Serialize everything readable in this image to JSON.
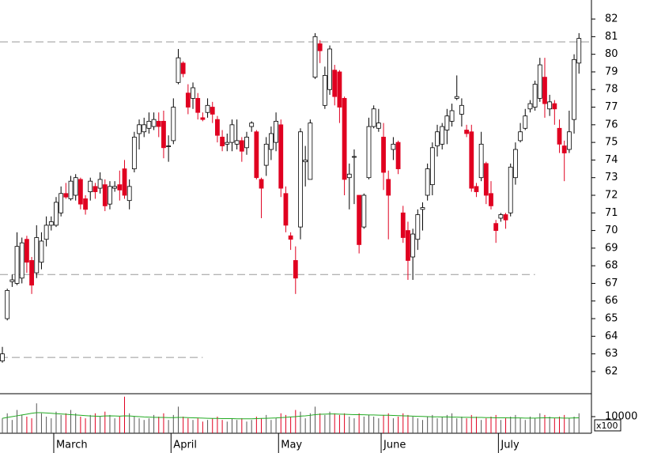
{
  "chart_data": {
    "type": "candlestick",
    "categories": [
      null,
      null,
      null,
      null,
      null,
      null,
      null,
      null,
      null,
      null,
      null,
      "March",
      null,
      null,
      null,
      null,
      null,
      null,
      null,
      null,
      null,
      null,
      null,
      null,
      null,
      null,
      null,
      null,
      null,
      null,
      null,
      null,
      null,
      null,
      null,
      "April",
      null,
      null,
      null,
      null,
      null,
      null,
      null,
      null,
      null,
      null,
      null,
      null,
      null,
      null,
      null,
      null,
      null,
      null,
      null,
      null,
      null,
      "May",
      null,
      null,
      null,
      null,
      null,
      null,
      null,
      null,
      null,
      null,
      null,
      null,
      null,
      null,
      null,
      null,
      null,
      null,
      null,
      null,
      "June",
      null,
      null,
      null,
      null,
      null,
      null,
      null,
      null,
      null,
      null,
      null,
      null,
      null,
      null,
      null,
      null,
      null,
      null,
      null,
      null,
      null,
      null,
      null,
      "July",
      null,
      null,
      null,
      null,
      null,
      null,
      null,
      null,
      null,
      null,
      null,
      null,
      null,
      null,
      null,
      null
    ],
    "open": [
      62.6,
      65.0,
      67.1,
      67.0,
      67.3,
      69.5,
      68.3,
      67.6,
      68.2,
      69.5,
      70.3,
      70.3,
      71.0,
      72.1,
      71.8,
      72.0,
      72.9,
      71.8,
      72.2,
      72.5,
      72.4,
      72.6,
      71.5,
      72.4,
      72.6,
      73.5,
      71.7,
      73.5,
      75.5,
      75.6,
      75.8,
      75.9,
      76.2,
      76.2,
      74.8,
      75.1,
      78.4,
      79.5,
      77.8,
      77.5,
      77.5,
      76.4,
      76.7,
      77.0,
      76.3,
      75.3,
      74.9,
      75.0,
      74.9,
      75.1,
      74.7,
      75.9,
      75.6,
      72.9,
      73.7,
      74.6,
      75.0,
      76.0,
      72.1,
      69.7,
      68.3,
      70.2,
      73.9,
      72.9,
      78.7,
      80.6,
      77.1,
      78.0,
      79.1,
      79.0,
      77.5,
      73.0,
      74.2,
      72.0,
      70.2,
      73.0,
      75.9,
      75.8,
      75.3,
      72.9,
      74.6,
      75.0,
      71.0,
      70.0,
      68.5,
      69.5,
      71.2,
      72.0,
      72.6,
      74.8,
      74.9,
      75.7,
      76.2,
      77.5,
      76.6,
      75.7,
      75.6,
      72.5,
      73.0,
      73.8,
      72.1,
      70.4,
      70.7,
      70.9,
      71.0,
      73.0,
      75.1,
      75.8,
      76.9,
      77.0,
      77.5,
      78.7,
      76.9,
      77.2,
      75.8,
      74.8,
      74.6,
      76.3,
      79.5
    ],
    "high": [
      63.4,
      66.7,
      67.5,
      69.9,
      69.6,
      69.7,
      68.5,
      70.3,
      69.9,
      70.8,
      70.8,
      71.9,
      72.5,
      72.7,
      73.1,
      73.2,
      73.0,
      72.0,
      73.0,
      72.7,
      73.3,
      72.9,
      72.8,
      72.8,
      73.4,
      74.0,
      72.9,
      75.6,
      76.3,
      76.4,
      76.7,
      76.7,
      76.7,
      76.8,
      75.4,
      77.5,
      80.3,
      79.6,
      78.3,
      78.4,
      77.8,
      76.7,
      77.5,
      77.3,
      76.5,
      75.7,
      75.5,
      76.3,
      76.3,
      75.3,
      75.6,
      76.2,
      75.7,
      73.0,
      75.3,
      75.9,
      76.7,
      76.3,
      72.5,
      69.9,
      69.1,
      75.8,
      74.8,
      76.3,
      81.2,
      80.8,
      79.3,
      80.5,
      79.4,
      79.1,
      77.6,
      73.8,
      74.6,
      72.0,
      72.1,
      76.4,
      77.1,
      76.9,
      76.1,
      73.4,
      75.3,
      75.1,
      71.4,
      70.5,
      70.1,
      71.2,
      71.6,
      73.8,
      75.0,
      76.0,
      76.1,
      76.9,
      77.2,
      78.8,
      77.5,
      76.0,
      76.0,
      72.7,
      75.6,
      73.9,
      72.8,
      70.6,
      71.0,
      71.0,
      73.8,
      75.0,
      76.1,
      76.9,
      77.4,
      78.5,
      79.8,
      79.8,
      77.7,
      77.4,
      76.3,
      75.1,
      76.8,
      80.0,
      81.2
    ],
    "low": [
      62.5,
      64.9,
      66.8,
      66.9,
      67.0,
      67.6,
      66.4,
      67.3,
      67.8,
      69.1,
      70.0,
      70.2,
      70.8,
      71.8,
      71.7,
      71.7,
      71.2,
      70.9,
      71.7,
      71.8,
      72.1,
      71.1,
      71.2,
      72.2,
      71.7,
      71.8,
      71.2,
      73.3,
      74.6,
      75.3,
      75.5,
      75.7,
      75.3,
      74.1,
      73.9,
      74.9,
      78.3,
      78.7,
      76.6,
      76.9,
      76.3,
      76.2,
      76.4,
      76.1,
      75.0,
      74.5,
      74.5,
      74.5,
      74.6,
      73.9,
      74.3,
      75.6,
      72.9,
      70.7,
      73.1,
      74.0,
      74.5,
      71.9,
      69.9,
      68.9,
      66.4,
      69.5,
      72.5,
      72.9,
      78.6,
      79.5,
      76.9,
      77.7,
      77.1,
      76.1,
      72.0,
      71.2,
      71.5,
      68.7,
      70.1,
      72.9,
      75.8,
      75.6,
      72.3,
      69.5,
      74.0,
      73.2,
      69.3,
      67.2,
      67.2,
      68.9,
      70.0,
      71.7,
      72.0,
      74.2,
      74.6,
      74.9,
      75.9,
      77.4,
      75.9,
      75.3,
      72.2,
      71.9,
      72.8,
      71.5,
      71.2,
      69.3,
      70.5,
      70.1,
      70.8,
      72.6,
      75.0,
      75.7,
      76.7,
      76.8,
      77.3,
      76.4,
      76.5,
      76.0,
      74.4,
      72.8,
      74.4,
      75.5,
      78.9
    ],
    "close": [
      63.0,
      66.6,
      67.2,
      69.1,
      69.3,
      68.2,
      66.9,
      69.6,
      69.4,
      70.3,
      70.5,
      71.6,
      72.1,
      71.9,
      72.8,
      73.0,
      71.5,
      71.2,
      72.8,
      72.2,
      72.9,
      71.4,
      72.5,
      72.5,
      72.3,
      72.0,
      72.5,
      75.3,
      76.0,
      76.0,
      76.2,
      76.3,
      75.9,
      74.7,
      74.8,
      77.0,
      79.8,
      78.9,
      77.0,
      78.1,
      76.7,
      76.3,
      77.1,
      76.6,
      75.4,
      74.8,
      75.0,
      76.0,
      75.1,
      74.5,
      75.3,
      76.1,
      73.0,
      72.4,
      74.9,
      75.5,
      76.2,
      72.4,
      70.3,
      69.5,
      67.3,
      75.6,
      74.0,
      76.1,
      81.0,
      80.2,
      78.8,
      80.3,
      77.6,
      77.0,
      72.9,
      73.2,
      74.2,
      69.2,
      72.0,
      75.9,
      76.9,
      76.1,
      73.3,
      72.0,
      74.9,
      73.5,
      69.6,
      68.3,
      69.8,
      70.9,
      71.3,
      73.5,
      74.7,
      75.6,
      75.9,
      76.5,
      76.8,
      77.6,
      77.1,
      75.5,
      72.4,
      72.2,
      74.9,
      72.0,
      71.4,
      70.0,
      70.9,
      70.6,
      73.6,
      74.6,
      75.6,
      76.5,
      77.2,
      78.3,
      79.4,
      77.2,
      77.3,
      76.9,
      74.9,
      74.4,
      75.6,
      79.7,
      80.9
    ],
    "up_color": "#ffffff",
    "down_color": "#e00020",
    "ylim": [
      60.74,
      83.08
    ],
    "yticks": [
      62,
      63,
      64,
      65,
      66,
      67,
      68,
      69,
      70,
      71,
      72,
      73,
      74,
      75,
      76,
      77,
      78,
      79,
      80,
      81,
      82
    ],
    "reference_lines": [
      {
        "value": 80.7
      },
      {
        "value": 67.5,
        "until": 109
      },
      {
        "value": 62.8,
        "until": 41
      }
    ],
    "volume": {
      "values": [
        9000,
        12000,
        8000,
        14000,
        11000,
        10000,
        9000,
        18000,
        12000,
        10000,
        9000,
        13000,
        11000,
        12000,
        14000,
        12000,
        10000,
        9000,
        11000,
        12000,
        10000,
        13000,
        11000,
        9000,
        10000,
        22000,
        12000,
        10000,
        9000,
        8000,
        9000,
        11000,
        10000,
        12000,
        8000,
        11000,
        16000,
        10000,
        9000,
        8000,
        9000,
        7000,
        8000,
        9000,
        10000,
        8000,
        7000,
        9000,
        8000,
        9000,
        7000,
        8000,
        10000,
        9000,
        11000,
        8000,
        9000,
        12000,
        11000,
        10000,
        14000,
        13000,
        9000,
        12000,
        16000,
        12000,
        11000,
        13000,
        12000,
        11000,
        12000,
        10000,
        9000,
        12000,
        10000,
        11000,
        10000,
        9000,
        11000,
        12000,
        9000,
        10000,
        12000,
        11000,
        10000,
        9000,
        8000,
        10000,
        11000,
        9000,
        10000,
        11000,
        12000,
        9000,
        10000,
        9000,
        11000,
        10000,
        8000,
        9000,
        10000,
        11000,
        8000,
        9000,
        10000,
        11000,
        9000,
        8000,
        10000,
        9000,
        12000,
        11000,
        10000,
        9000,
        10000,
        11000,
        9000,
        10000,
        12000
      ],
      "ma": [
        9000,
        9500,
        10000,
        10500,
        11000,
        11500,
        12000,
        12400,
        12400,
        12200,
        12000,
        11800,
        11600,
        11400,
        11200,
        11000,
        10800,
        10600,
        10400,
        10300,
        10200,
        10400,
        10500,
        10400,
        10300,
        10500,
        10400,
        10200,
        10000,
        9800,
        9700,
        9600,
        9500,
        9500,
        9400,
        9400,
        9500,
        9500,
        9400,
        9300,
        9200,
        9100,
        9000,
        8900,
        8900,
        8800,
        8800,
        8800,
        8700,
        8700,
        8700,
        8700,
        8800,
        8900,
        9000,
        9100,
        9200,
        9400,
        9600,
        9800,
        10000,
        10300,
        10500,
        10800,
        11200,
        11400,
        11500,
        11600,
        11600,
        11500,
        11400,
        11300,
        11200,
        11200,
        11100,
        11000,
        11000,
        10900,
        10800,
        10800,
        10700,
        10600,
        10500,
        10400,
        10300,
        10200,
        10100,
        10000,
        9900,
        9900,
        9800,
        9800,
        9700,
        9700,
        9600,
        9600,
        9500,
        9500,
        9500,
        9400,
        9400,
        9300,
        9300,
        9300,
        9200,
        9200,
        9200,
        9100,
        9100,
        9100,
        9200,
        9300,
        9300,
        9200,
        9200,
        9100,
        9100,
        9200,
        9300
      ],
      "ma_color": "#22aa22",
      "ylim": [
        0,
        23800
      ],
      "yticks": [
        10000
      ],
      "unit_label": "x100"
    }
  }
}
